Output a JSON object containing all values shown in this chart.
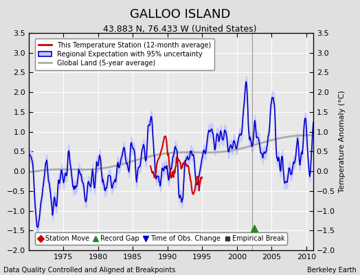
{
  "title": "GALLOO ISLAND",
  "subtitle": "43.883 N, 76.433 W (United States)",
  "ylabel": "Temperature Anomaly (°C)",
  "footer_left": "Data Quality Controlled and Aligned at Breakpoints",
  "footer_right": "Berkeley Earth",
  "xlim": [
    1970,
    2011
  ],
  "ylim": [
    -2.0,
    3.5
  ],
  "yticks": [
    -2,
    -1.5,
    -1,
    -0.5,
    0,
    0.5,
    1,
    1.5,
    2,
    2.5,
    3,
    3.5
  ],
  "xticks": [
    1975,
    1980,
    1985,
    1990,
    1995,
    2000,
    2005,
    2010
  ],
  "bg_color": "#e0e0e0",
  "plot_bg_color": "#e8e8e8",
  "grid_color": "#ffffff",
  "station_line_color": "#cc0000",
  "regional_line_color": "#0000cc",
  "regional_fill_color": "#c8c8ff",
  "global_line_color": "#aaaaaa",
  "station_start_year": 1987.5,
  "station_end_year": 1995.0,
  "record_gap_x": 2002.5,
  "record_gap_y": -1.45,
  "time_obs_change_x": 2002.2,
  "empirical_break_x": 2002.2,
  "legend_main": [
    {
      "label": "This Temperature Station (12-month average)",
      "color": "#cc0000",
      "lw": 2
    },
    {
      "label": "Regional Expectation with 95% uncertainty",
      "color": "#0000cc",
      "fill": "#c8c8ff",
      "lw": 1.5
    },
    {
      "label": "Global Land (5-year average)",
      "color": "#aaaaaa",
      "lw": 2
    }
  ],
  "legend_markers": [
    {
      "label": "Station Move",
      "marker": "D",
      "color": "#cc0000"
    },
    {
      "label": "Record Gap",
      "marker": "^",
      "color": "#228b22"
    },
    {
      "label": "Time of Obs. Change",
      "marker": "v",
      "color": "#0000cc"
    },
    {
      "label": "Empirical Break",
      "marker": "s",
      "color": "#333333"
    }
  ]
}
